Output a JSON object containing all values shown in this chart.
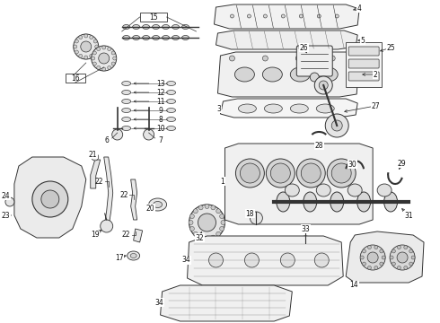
{
  "bg_color": "#ffffff",
  "figsize": [
    4.9,
    3.6
  ],
  "dpi": 100,
  "line_color": "#333333",
  "label_color": "#111111",
  "label_fontsize": 5.5,
  "parts_color": "#ffffff",
  "edge_color": "#333333"
}
